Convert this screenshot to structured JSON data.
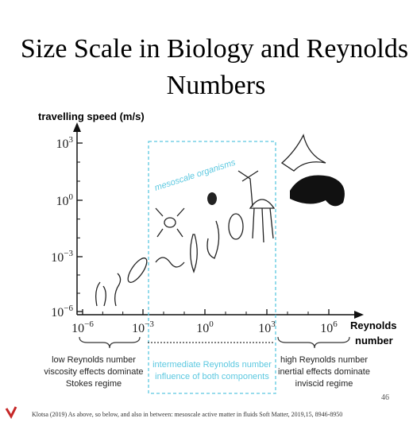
{
  "title": [
    "Size Scale in Biology and Reynolds",
    "Numbers"
  ],
  "y_axis_label": "travelling speed (m/s)",
  "x_axis_label": [
    "Reynolds",
    "number"
  ],
  "y_ticks": [
    {
      "base": "10",
      "exp": "3"
    },
    {
      "base": "10",
      "exp": "0"
    },
    {
      "base": "10",
      "exp": "−3"
    },
    {
      "base": "10",
      "exp": "−6"
    }
  ],
  "x_ticks": [
    {
      "base": "10",
      "exp": "−6"
    },
    {
      "base": "10",
      "exp": "−3"
    },
    {
      "base": "10",
      "exp": "0"
    },
    {
      "base": "10",
      "exp": "3"
    },
    {
      "base": "10",
      "exp": "6"
    }
  ],
  "region_label": "mesoscale organisms",
  "regimes": [
    {
      "lines": [
        "low Reynolds number",
        "viscosity effects dominate",
        "Stokes regime"
      ]
    },
    {
      "lines": [
        "intermediate Reynolds number",
        "influence of both components"
      ]
    },
    {
      "lines": [
        "high Reynolds number",
        "inertial effects dominate",
        "inviscid regime"
      ]
    }
  ],
  "page_number": "46",
  "footer": "Klotsa (2019) As above, so below, and also in between: mesoscale active matter in fluids  Soft Matter, 2019,15, 8946-8950"
}
